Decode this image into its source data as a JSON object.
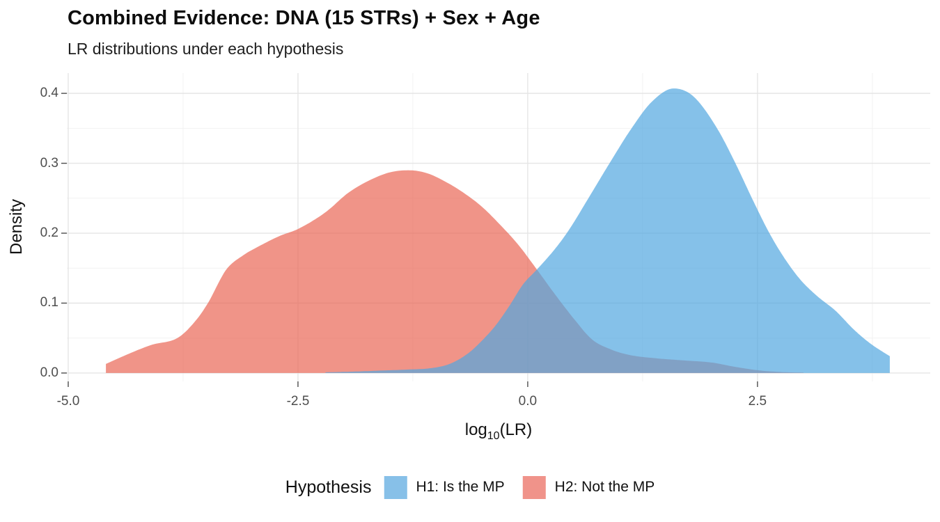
{
  "title": "Combined Evidence: DNA (15 STRs) + Sex + Age",
  "subtitle": "LR distributions under each hypothesis",
  "chart_data": {
    "type": "area",
    "ylabel": "Density",
    "xlabel": {
      "base": "log",
      "sub": "10",
      "rest": "(LR)"
    },
    "legend_title": "Hypothesis",
    "legend_position": "bottom",
    "grid": "on",
    "xlim": [
      -5.015,
      4.38
    ],
    "ylim": [
      -0.012,
      0.429
    ],
    "x_ticks": [
      "-5.0",
      "-2.5",
      "0.0",
      "2.5"
    ],
    "x_tick_values": [
      -5.0,
      -2.5,
      0.0,
      2.5
    ],
    "x_minor_values": [
      -3.75,
      -1.25,
      1.25,
      3.75
    ],
    "y_ticks": [
      "0.0",
      "0.1",
      "0.2",
      "0.3",
      "0.4"
    ],
    "y_tick_values": [
      0.0,
      0.1,
      0.2,
      0.3,
      0.4
    ],
    "y_minor_values": [
      0.05,
      0.15,
      0.25,
      0.35
    ],
    "colors": {
      "grid_major": "#e5e5e5",
      "grid_minor": "#f2f2f2",
      "axis_tick": "#4d4d4d",
      "tick_text": "#4d4d4d",
      "overlap_observed": "#8193bc"
    },
    "series": [
      {
        "name": "H1: Is the MP",
        "color": "#87c0e8",
        "fill": "rgba(81,166,224,0.7)",
        "points": [
          [
            -2.2,
            0.001
          ],
          [
            -1.9,
            0.002
          ],
          [
            -1.6,
            0.0035
          ],
          [
            -1.3,
            0.005
          ],
          [
            -1.05,
            0.007
          ],
          [
            -0.85,
            0.013
          ],
          [
            -0.65,
            0.028
          ],
          [
            -0.5,
            0.046
          ],
          [
            -0.35,
            0.068
          ],
          [
            -0.2,
            0.096
          ],
          [
            -0.05,
            0.127
          ],
          [
            0.1,
            0.148
          ],
          [
            0.3,
            0.178
          ],
          [
            0.45,
            0.205
          ],
          [
            0.66,
            0.25
          ],
          [
            0.89,
            0.3
          ],
          [
            1.13,
            0.35
          ],
          [
            1.35,
            0.388
          ],
          [
            1.59,
            0.407
          ],
          [
            1.8,
            0.396
          ],
          [
            2.06,
            0.35
          ],
          [
            2.26,
            0.3
          ],
          [
            2.44,
            0.25
          ],
          [
            2.63,
            0.2
          ],
          [
            2.8,
            0.163
          ],
          [
            2.97,
            0.133
          ],
          [
            3.15,
            0.11
          ],
          [
            3.35,
            0.089
          ],
          [
            3.55,
            0.062
          ],
          [
            3.73,
            0.042
          ],
          [
            3.94,
            0.024
          ]
        ]
      },
      {
        "name": "H2: Not the MP",
        "color": "#f0938a",
        "fill": "rgba(234,102,86,0.7)",
        "points": [
          [
            -4.59,
            0.013
          ],
          [
            -4.35,
            0.027
          ],
          [
            -4.1,
            0.04
          ],
          [
            -3.8,
            0.051
          ],
          [
            -3.6,
            0.077
          ],
          [
            -3.48,
            0.1
          ],
          [
            -3.28,
            0.148
          ],
          [
            -3.1,
            0.168
          ],
          [
            -2.9,
            0.183
          ],
          [
            -2.7,
            0.196
          ],
          [
            -2.5,
            0.206
          ],
          [
            -2.2,
            0.23
          ],
          [
            -1.95,
            0.258
          ],
          [
            -1.7,
            0.277
          ],
          [
            -1.5,
            0.287
          ],
          [
            -1.3,
            0.29
          ],
          [
            -1.1,
            0.286
          ],
          [
            -0.9,
            0.274
          ],
          [
            -0.7,
            0.258
          ],
          [
            -0.5,
            0.238
          ],
          [
            -0.3,
            0.212
          ],
          [
            -0.1,
            0.183
          ],
          [
            0.1,
            0.148
          ],
          [
            0.3,
            0.112
          ],
          [
            0.5,
            0.078
          ],
          [
            0.7,
            0.048
          ],
          [
            0.9,
            0.034
          ],
          [
            1.1,
            0.026
          ],
          [
            1.4,
            0.021
          ],
          [
            1.7,
            0.018
          ],
          [
            2.0,
            0.015
          ],
          [
            2.25,
            0.009
          ],
          [
            2.5,
            0.004
          ],
          [
            2.75,
            0.0015
          ],
          [
            3.0,
            0.0005
          ]
        ]
      }
    ]
  }
}
